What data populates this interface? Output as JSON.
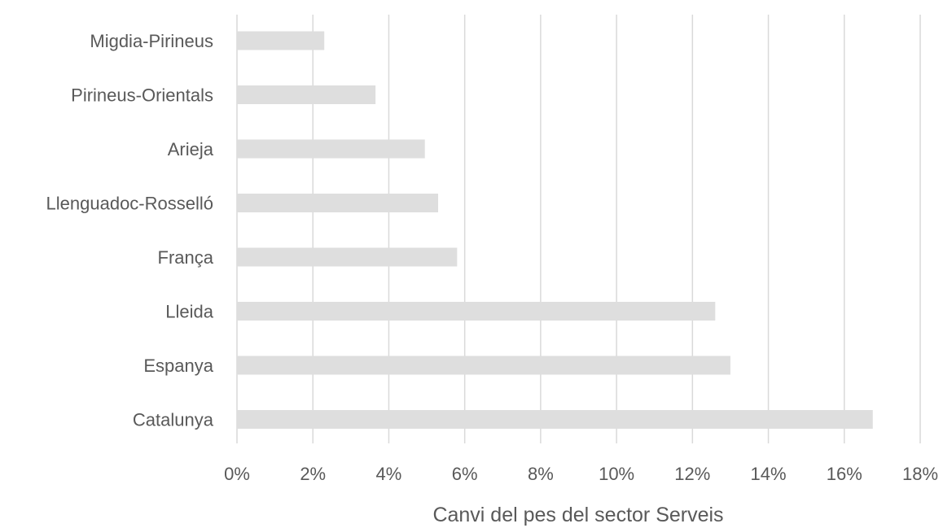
{
  "chart_data": {
    "type": "bar",
    "orientation": "horizontal",
    "categories": [
      "Migdia-Pirineus",
      "Pirineus-Orientals",
      "Arieja",
      "Llenguadoc-Rosselló",
      "França",
      "Lleida",
      "Espanya",
      "Catalunya"
    ],
    "values": [
      2.3,
      3.65,
      4.95,
      5.3,
      5.8,
      12.6,
      13.0,
      16.75
    ],
    "unit": "%",
    "xlabel": "Canvi del pes del sector Serveis",
    "ylabel": "",
    "title": "",
    "xlim": [
      0,
      18
    ],
    "xticks": [
      "0%",
      "2%",
      "4%",
      "6%",
      "8%",
      "10%",
      "12%",
      "14%",
      "16%",
      "18%"
    ],
    "grid": "vertical",
    "legend": "none",
    "colors": {
      "bar": "#dedede",
      "grid": "#d9d9d9",
      "text": "#595959"
    }
  }
}
